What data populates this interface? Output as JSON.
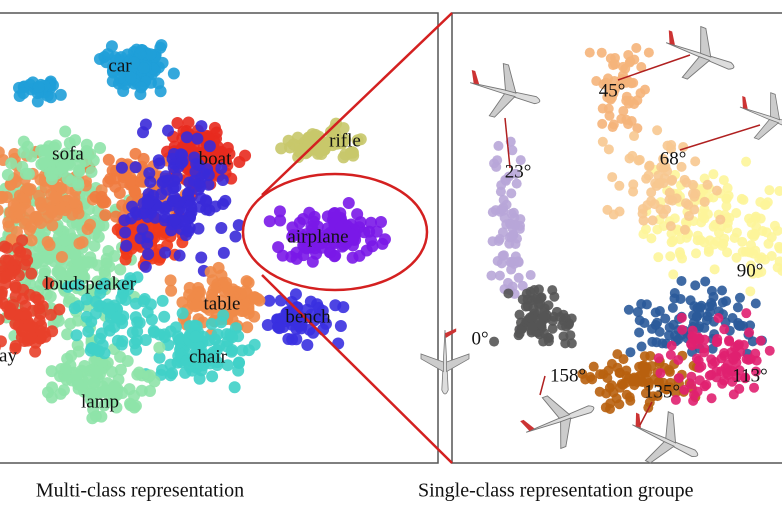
{
  "left_panel": {
    "caption": "Multi-class representation",
    "clusters": [
      {
        "label": "car"
      },
      {
        "label": "sofa"
      },
      {
        "label": "boat"
      },
      {
        "label": "rifle"
      },
      {
        "label": "airplane"
      },
      {
        "label": "loudspeaker"
      },
      {
        "label": "table"
      },
      {
        "label": "bench"
      },
      {
        "label": "ay"
      },
      {
        "label": "chair"
      },
      {
        "label": "lamp"
      }
    ]
  },
  "right_panel": {
    "caption": "Single-class representation groupe",
    "angles": [
      {
        "label": "45°"
      },
      {
        "label": "23°"
      },
      {
        "label": "68°"
      },
      {
        "label": "90°"
      },
      {
        "label": "0°"
      },
      {
        "label": "158°"
      },
      {
        "label": "135°"
      },
      {
        "label": "113°"
      }
    ]
  }
}
